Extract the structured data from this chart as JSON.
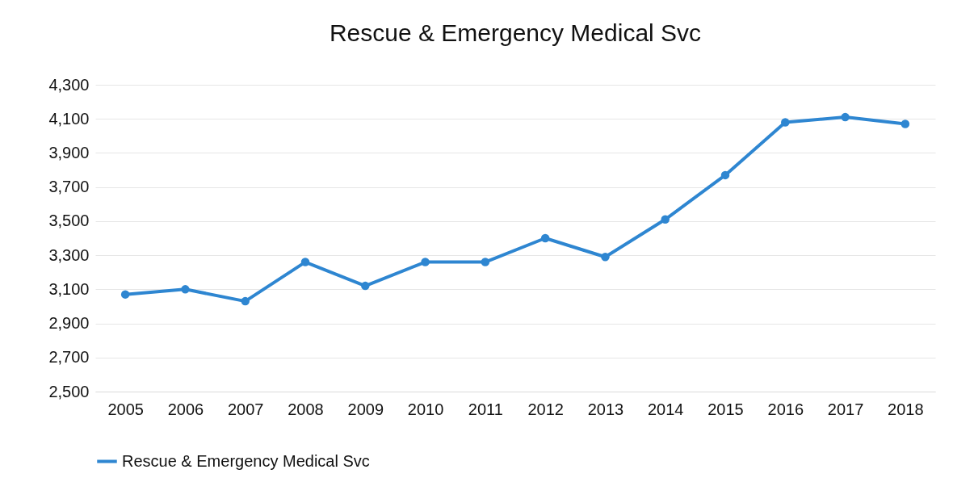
{
  "chart_data": {
    "type": "line",
    "title": "Rescue & Emergency Medical Svc",
    "categories": [
      "2005",
      "2006",
      "2007",
      "2008",
      "2009",
      "2010",
      "2011",
      "2012",
      "2013",
      "2014",
      "2015",
      "2016",
      "2017",
      "2018"
    ],
    "series": [
      {
        "name": "Rescue & Emergency Medical Svc",
        "color": "#2e86d1",
        "values": [
          3070,
          3100,
          3030,
          3260,
          3120,
          3260,
          3260,
          3400,
          3290,
          3510,
          3770,
          4080,
          4110,
          4070
        ]
      }
    ],
    "ylim": [
      2500,
      4300
    ],
    "yticks": [
      {
        "value": 2500,
        "label": "2,500"
      },
      {
        "value": 2700,
        "label": "2,700"
      },
      {
        "value": 2900,
        "label": "2,900"
      },
      {
        "value": 3100,
        "label": "3,100"
      },
      {
        "value": 3300,
        "label": "3,300"
      },
      {
        "value": 3500,
        "label": "3,500"
      },
      {
        "value": 3700,
        "label": "3,700"
      },
      {
        "value": 3900,
        "label": "3,900"
      },
      {
        "value": 4100,
        "label": "4,100"
      },
      {
        "value": 4300,
        "label": "4,300"
      }
    ],
    "grid": "y",
    "legend": "bottom",
    "marker": "circle",
    "line_style": "solid"
  }
}
